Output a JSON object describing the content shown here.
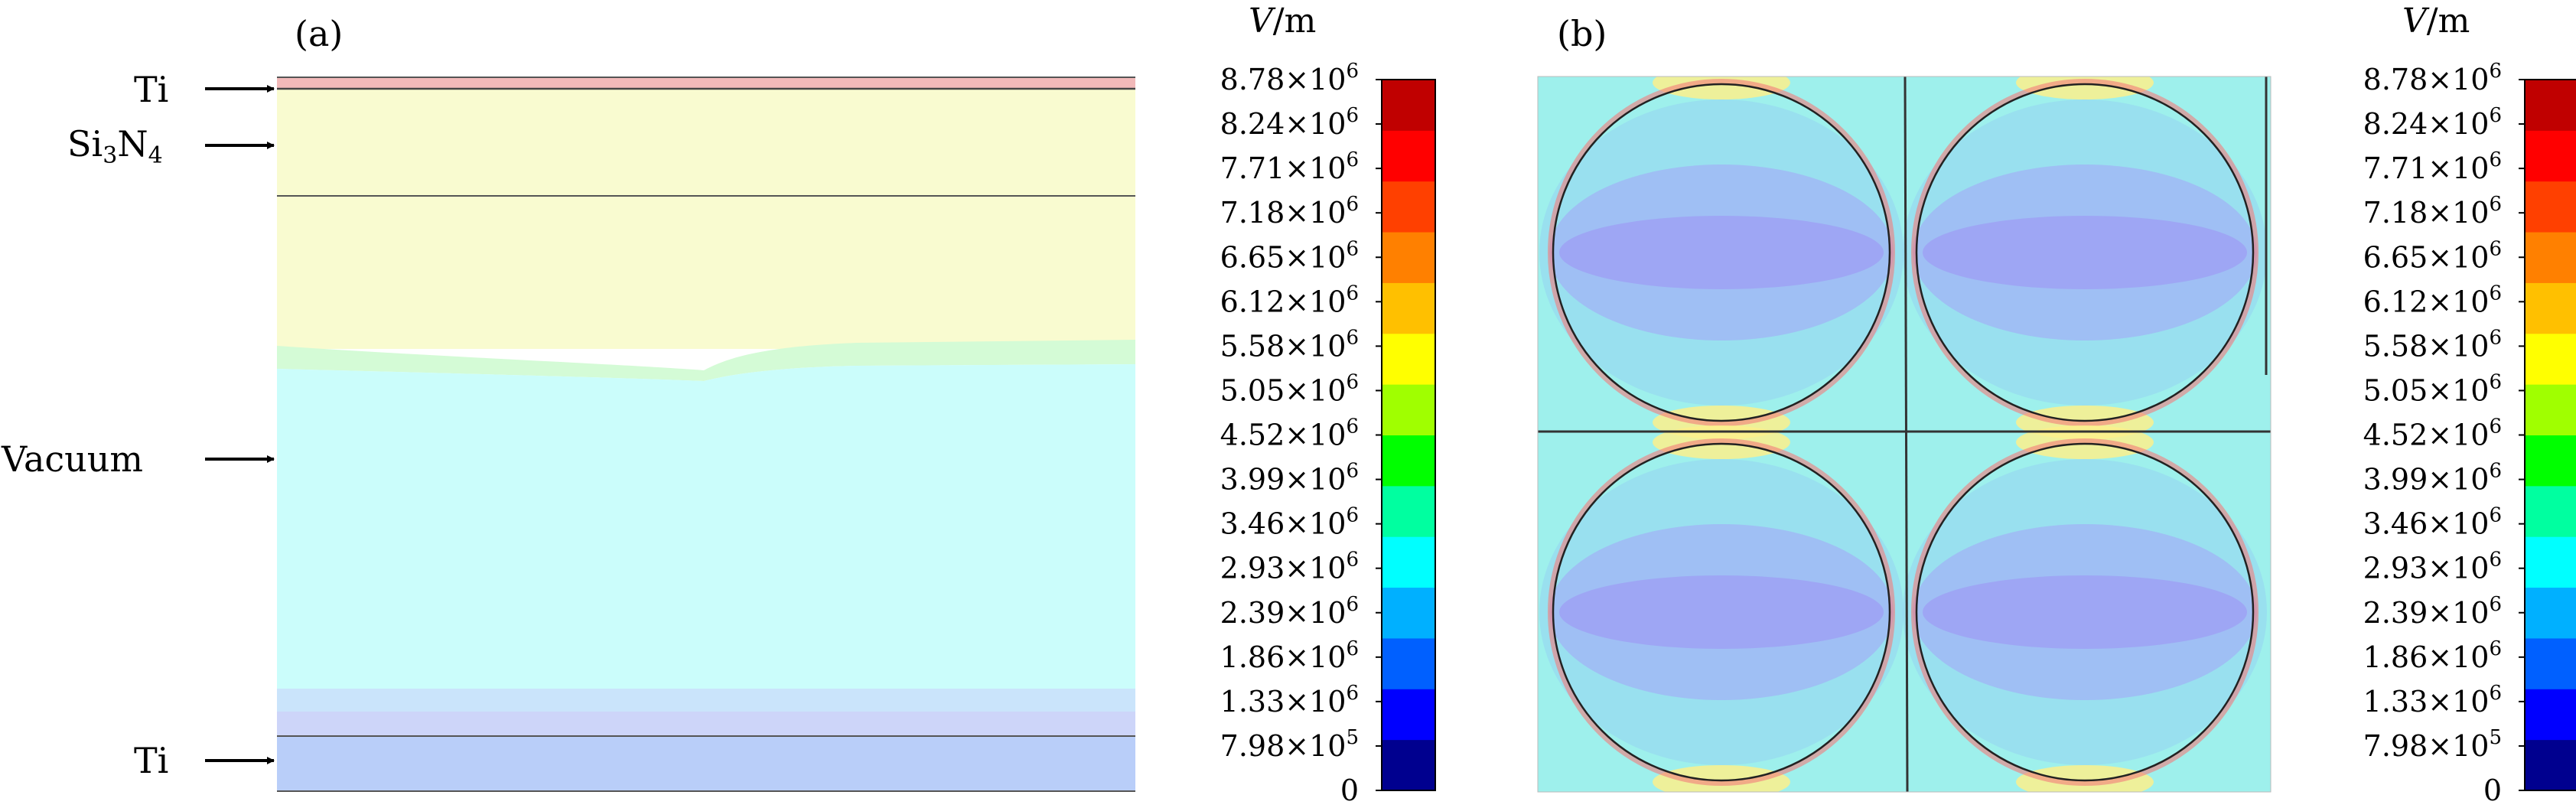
{
  "panel_a": {
    "label": "(a)",
    "layers": {
      "ti_top": "Ti",
      "si3n4": {
        "base": "Si",
        "sub1": "3",
        "mid": "N",
        "sub2": "4"
      },
      "vacuum": "Vacuum",
      "ti_bottom": "Ti"
    }
  },
  "panel_b": {
    "label": "(b)"
  },
  "colorbar": {
    "unit_symbol": "V",
    "unit_rest": "/m",
    "ticks": [
      {
        "mantissa": "8.78",
        "exp": "6"
      },
      {
        "mantissa": "8.24",
        "exp": "6"
      },
      {
        "mantissa": "7.71",
        "exp": "6"
      },
      {
        "mantissa": "7.18",
        "exp": "6"
      },
      {
        "mantissa": "6.65",
        "exp": "6"
      },
      {
        "mantissa": "6.12",
        "exp": "6"
      },
      {
        "mantissa": "5.58",
        "exp": "6"
      },
      {
        "mantissa": "5.05",
        "exp": "6"
      },
      {
        "mantissa": "4.52",
        "exp": "6"
      },
      {
        "mantissa": "3.99",
        "exp": "6"
      },
      {
        "mantissa": "3.46",
        "exp": "6"
      },
      {
        "mantissa": "2.93",
        "exp": "6"
      },
      {
        "mantissa": "2.39",
        "exp": "6"
      },
      {
        "mantissa": "1.86",
        "exp": "6"
      },
      {
        "mantissa": "1.33",
        "exp": "6"
      },
      {
        "mantissa": "7.98",
        "exp": "5"
      },
      {
        "mantissa": "0",
        "exp": ""
      }
    ],
    "times_sign": "×",
    "base": "10",
    "colors": [
      "#00008f",
      "#0000ff",
      "#0060ff",
      "#00b0ff",
      "#00ffff",
      "#00ffa0",
      "#00ff00",
      "#a0ff00",
      "#ffff00",
      "#ffc000",
      "#ff8000",
      "#ff4000",
      "#ff0000",
      "#c00000"
    ],
    "field_colors": {
      "ti_top": "#f2b9b9",
      "si3n4": "#f9fbd0",
      "transition": "#d4fbd6",
      "vacuum": "#cbfdfb",
      "vacuum_low": "#cae4fb",
      "ti_layer": "#cdd5f9",
      "ti_bottom": "#b9cef9",
      "cell_bg": "#9ef0ec",
      "cell_mid": "#96d4f2",
      "cell_inner": "#a0b8f5",
      "cell_core": "#9ea6f4",
      "hot": "#fbf08c",
      "peak": "#f47c7c"
    }
  }
}
